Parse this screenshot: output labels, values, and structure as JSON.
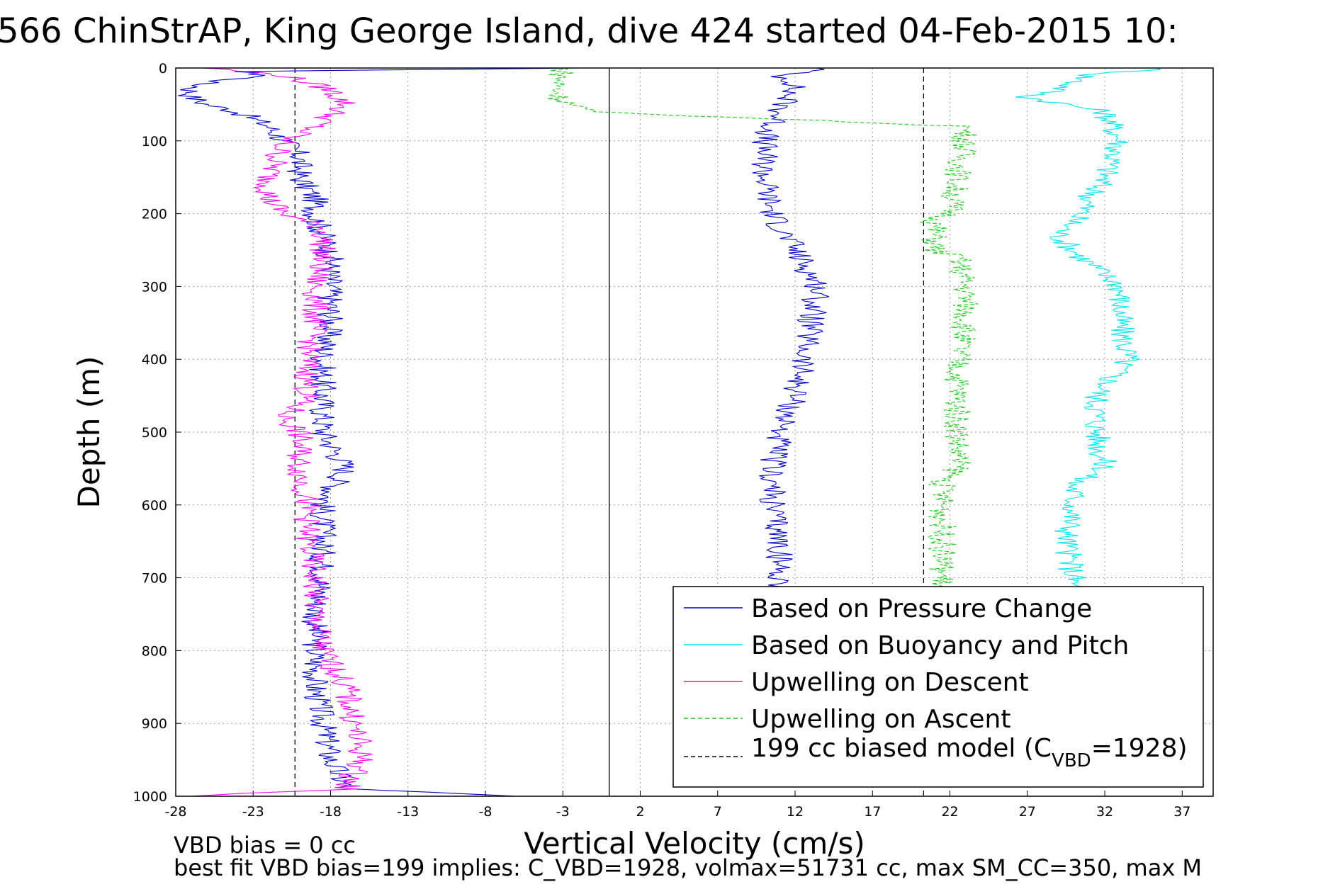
{
  "chart_data": {
    "type": "line",
    "title": "566 ChinStrAP, King George Island, dive 424 started 04-Feb-2015 10:",
    "xlabel": "Vertical Velocity (cm/s)",
    "ylabel": "Depth (m)",
    "xlim": [
      -28,
      39
    ],
    "ylim": [
      0,
      1000
    ],
    "y_reversed": true,
    "grid": true,
    "x_ticks": [
      "-28",
      "-23",
      "-18",
      "-13",
      "-8",
      "-3",
      "2",
      "7",
      "12",
      "17",
      "22",
      "27",
      "32",
      "37"
    ],
    "y_ticks": [
      "0",
      "100",
      "200",
      "300",
      "400",
      "500",
      "600",
      "700",
      "800",
      "900",
      "1000"
    ],
    "legend_position": "bottom-right",
    "reference_lines": [
      {
        "x": 0,
        "style": "solid",
        "color": "#000000"
      },
      {
        "x": -20.3,
        "style": "dashed",
        "color": "#000000"
      },
      {
        "x": 20.3,
        "style": "dashed",
        "color": "#000000"
      }
    ],
    "series": [
      {
        "name": "Based on Pressure Change",
        "color": "#0000cc",
        "style": "solid",
        "descent": {
          "depth": [
            0,
            5,
            10,
            20,
            30,
            40,
            50,
            60,
            80,
            100,
            120,
            150,
            180,
            200,
            230,
            260,
            300,
            350,
            400,
            450,
            500,
            550,
            600,
            650,
            700,
            750,
            800,
            850,
            900,
            950,
            990,
            1000
          ],
          "velocity": [
            -3,
            -24,
            -22,
            -26,
            -27,
            -27,
            -26,
            -24,
            -22,
            -21,
            -20,
            -20,
            -19,
            -19,
            -18.5,
            -18,
            -18,
            -18,
            -18.5,
            -18.5,
            -18.5,
            -17,
            -18.5,
            -18.5,
            -18.5,
            -19,
            -19,
            -19,
            -18.5,
            -18,
            -17,
            -6
          ]
        },
        "ascent": {
          "depth": [
            0,
            10,
            20,
            40,
            60,
            80,
            100,
            150,
            200,
            250,
            300,
            350,
            400,
            450,
            500,
            550,
            600,
            650,
            700,
            720
          ],
          "velocity": [
            14,
            11,
            12,
            11.5,
            11,
            10.5,
            10,
            10,
            10.5,
            12,
            13.5,
            13,
            12.5,
            12,
            11,
            10.5,
            10.5,
            11,
            11,
            11.3
          ]
        }
      },
      {
        "name": "Based on Buoyancy and Pitch",
        "color": "#00e5ee",
        "style": "solid",
        "depth": [
          0,
          10,
          30,
          40,
          60,
          100,
          150,
          180,
          200,
          230,
          260,
          300,
          350,
          400,
          450,
          480,
          500,
          550,
          570,
          600,
          650,
          700,
          720
        ],
        "velocity": [
          36,
          31,
          29,
          27,
          32,
          33,
          32,
          31,
          30.5,
          29,
          30.5,
          33,
          33,
          33.5,
          31.5,
          31.5,
          31.5,
          32,
          30,
          30,
          29.5,
          30,
          30
        ]
      },
      {
        "name": "Upwelling on Descent",
        "color": "#ff00ff",
        "style": "solid",
        "depth": [
          0,
          10,
          30,
          50,
          80,
          100,
          150,
          180,
          200,
          220,
          250,
          300,
          350,
          400,
          450,
          480,
          500,
          550,
          600,
          650,
          700,
          750,
          800,
          850,
          900,
          950,
          990,
          1000
        ],
        "velocity": [
          -26,
          -21,
          -18,
          -17,
          -19,
          -21,
          -22,
          -22,
          -21,
          -18.5,
          -18.5,
          -19,
          -19,
          -19.5,
          -19.5,
          -21,
          -20,
          -20,
          -19.5,
          -19.5,
          -19,
          -19,
          -18.5,
          -17,
          -16.5,
          -16,
          -17,
          -27
        ]
      },
      {
        "name": "Upwelling on Ascent",
        "color": "#22cc22",
        "style": "dashed",
        "depth": [
          0,
          5,
          20,
          40,
          60,
          80,
          100,
          150,
          200,
          210,
          250,
          260,
          300,
          350,
          400,
          450,
          500,
          550,
          570,
          600,
          650,
          700,
          720
        ],
        "velocity": [
          -3,
          -3,
          -3.3,
          -3.3,
          -1.5,
          23,
          23,
          22.5,
          22,
          21,
          21,
          22.5,
          23,
          23,
          22.5,
          22.5,
          22.5,
          22.5,
          21.5,
          21.5,
          21.5,
          21.5,
          21.5
        ]
      },
      {
        "name": "199 cc biased model (C_VBD=1928)",
        "color": "#000000",
        "style": "dashed"
      }
    ],
    "annotations": [
      "VBD bias = 0 cc",
      "best fit VBD bias=199 implies: C_VBD=1928, volmax=51731 cc, max SM_CC=350, max M"
    ]
  },
  "legend": {
    "item1": "Based on Pressure Change",
    "item2": "Based on Buoyancy and Pitch",
    "item3": "Upwelling on Descent",
    "item4": "Upwelling on Ascent",
    "item5_prefix": "199 cc biased model (C",
    "item5_sub": "VBD",
    "item5_suffix": "=1928)"
  }
}
